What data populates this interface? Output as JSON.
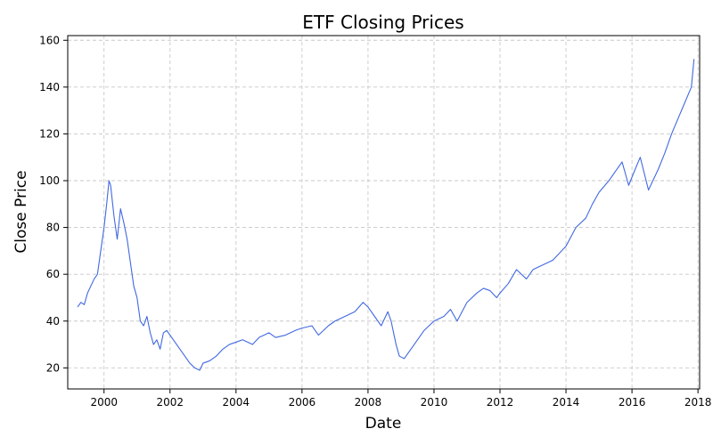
{
  "chart_data": {
    "type": "line",
    "title": "ETF Closing Prices",
    "xlabel": "Date",
    "ylabel": "Close Price",
    "grid": true,
    "xlim": [
      1998.9,
      2018.05
    ],
    "ylim": [
      11,
      162
    ],
    "x_ticks": [
      2000,
      2002,
      2004,
      2006,
      2008,
      2010,
      2012,
      2014,
      2016,
      2018
    ],
    "x_tick_labels": [
      "2000",
      "2002",
      "2004",
      "2006",
      "2008",
      "2010",
      "2012",
      "2014",
      "2016",
      "2018"
    ],
    "y_ticks": [
      20,
      40,
      60,
      80,
      100,
      120,
      140,
      160
    ],
    "y_tick_labels": [
      "20",
      "40",
      "60",
      "80",
      "100",
      "120",
      "140",
      "160"
    ],
    "line_color": "#4169e1",
    "series": [
      {
        "x": [
          1999.2,
          1999.3,
          1999.4,
          1999.5,
          1999.6,
          1999.7,
          1999.8,
          1999.9,
          2000.0,
          2000.08,
          2000.15,
          2000.2,
          2000.3,
          2000.4,
          2000.5,
          2000.6,
          2000.7,
          2000.8,
          2000.9,
          2001.0,
          2001.1,
          2001.2,
          2001.3,
          2001.4,
          2001.5,
          2001.6,
          2001.7,
          2001.8,
          2001.9,
          2002.0,
          2002.1,
          2002.3,
          2002.5,
          2002.6,
          2002.75,
          2002.9,
          2003.0,
          2003.2,
          2003.4,
          2003.6,
          2003.8,
          2004.0,
          2004.2,
          2004.5,
          2004.7,
          2005.0,
          2005.2,
          2005.5,
          2005.8,
          2006.0,
          2006.3,
          2006.5,
          2006.8,
          2007.0,
          2007.3,
          2007.6,
          2007.85,
          2008.0,
          2008.2,
          2008.4,
          2008.6,
          2008.7,
          2008.85,
          2008.95,
          2009.1,
          2009.2,
          2009.5,
          2009.7,
          2010.0,
          2010.3,
          2010.5,
          2010.7,
          2011.0,
          2011.3,
          2011.5,
          2011.7,
          2011.9,
          2012.0,
          2012.25,
          2012.5,
          2012.8,
          2013.0,
          2013.3,
          2013.6,
          2014.0,
          2014.3,
          2014.6,
          2014.8,
          2015.0,
          2015.3,
          2015.5,
          2015.7,
          2015.9,
          2016.1,
          2016.25,
          2016.5,
          2016.8,
          2017.0,
          2017.2,
          2017.5,
          2017.8,
          2017.88
        ],
        "y": [
          46,
          48,
          47,
          52,
          55,
          58,
          60,
          70,
          80,
          90,
          100,
          98,
          85,
          75,
          88,
          82,
          75,
          65,
          55,
          50,
          40,
          38,
          42,
          35,
          30,
          32,
          28,
          35,
          36,
          34,
          32,
          28,
          24,
          22,
          20,
          19,
          22,
          23,
          25,
          28,
          30,
          31,
          32,
          30,
          33,
          35,
          33,
          34,
          36,
          37,
          38,
          34,
          38,
          40,
          42,
          44,
          48,
          46,
          42,
          38,
          44,
          40,
          30,
          25,
          24,
          26,
          32,
          36,
          40,
          42,
          45,
          40,
          48,
          52,
          54,
          53,
          50,
          52,
          56,
          62,
          58,
          62,
          64,
          66,
          72,
          80,
          84,
          90,
          95,
          100,
          104,
          108,
          98,
          105,
          110,
          96,
          105,
          112,
          120,
          130,
          140,
          152
        ]
      }
    ]
  }
}
